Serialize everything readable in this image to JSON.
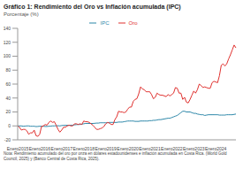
{
  "chart_data": {
    "type": "line",
    "title": "Gráfico 1: Rendimiento del Oro vs Inflación acumulada (IPC)",
    "subtitle": "Porcentaje (%)",
    "note": "Nota: Rendimiento acumulado del oro por onza en dólares estadounidenses e inflación acumulada en Costa Rica. (World Gold Council, 2025) y (Banco Central de Costa Rica, 2025).",
    "categories": [
      "Enero2015",
      null,
      null,
      null,
      null,
      null,
      null,
      null,
      null,
      null,
      null,
      null,
      "Enero2016",
      null,
      null,
      null,
      null,
      null,
      null,
      null,
      null,
      null,
      null,
      null,
      "Enero2017",
      null,
      null,
      null,
      null,
      null,
      null,
      null,
      null,
      null,
      null,
      null,
      "Enero2018",
      null,
      null,
      null,
      null,
      null,
      null,
      null,
      null,
      null,
      null,
      null,
      "Enero2019",
      null,
      null,
      null,
      null,
      null,
      null,
      null,
      null,
      null,
      null,
      null,
      "Enero2020",
      null,
      null,
      null,
      null,
      null,
      null,
      null,
      null,
      null,
      null,
      null,
      "Enero2021",
      null,
      null,
      null,
      null,
      null,
      null,
      null,
      null,
      null,
      null,
      null,
      "Enero2022",
      null,
      null,
      null,
      null,
      null,
      null,
      null,
      null,
      null,
      null,
      null,
      "Enero2023",
      null,
      null,
      null,
      null,
      null,
      null,
      null,
      null,
      null,
      null,
      null,
      "Enero2024",
      null,
      null,
      null,
      null,
      null,
      null,
      null,
      null,
      null,
      null,
      null
    ],
    "series": [
      {
        "name": "IPC",
        "color": "#2b86a8",
        "values": [
          0,
          0,
          0,
          -0.5,
          -0.3,
          0,
          0,
          -0.5,
          -0.5,
          -0.5,
          -1,
          -0.8,
          -0.5,
          -0.6,
          -0.5,
          -0.8,
          -0.8,
          -0.5,
          -0.3,
          0,
          0,
          0.2,
          0.2,
          0,
          0.5,
          0.7,
          0.8,
          0.8,
          0.8,
          1,
          1,
          1.5,
          1.8,
          2,
          2,
          2.5,
          3,
          3.5,
          3.5,
          3.5,
          3.5,
          3.5,
          3.7,
          4,
          4,
          4.5,
          4.5,
          4.5,
          4.5,
          4.5,
          5,
          5,
          5,
          5,
          5,
          5.5,
          5.5,
          5.5,
          6,
          6.5,
          7,
          7,
          7,
          7,
          6.5,
          6.5,
          6.5,
          7,
          7,
          7,
          7,
          7,
          7.5,
          7.5,
          8,
          8,
          8.5,
          9,
          9,
          9.5,
          10,
          10.5,
          11,
          11,
          12,
          13,
          14,
          15,
          17,
          19,
          21,
          21,
          20,
          20,
          20,
          19,
          18,
          18,
          17,
          16.5,
          16,
          16,
          15,
          15.5,
          16,
          16,
          16,
          16,
          16,
          16,
          15.5,
          15.5,
          15.5,
          15.5,
          16,
          16,
          16,
          16,
          16.5,
          17
        ]
      },
      {
        "name": "Oro",
        "color": "#e0302e",
        "values": [
          0,
          -2,
          -6,
          -5,
          -5,
          -7,
          -12,
          -10,
          -10,
          -6,
          -14,
          -15,
          -12,
          -1,
          0,
          2,
          1,
          5,
          7,
          5,
          6,
          1,
          -5,
          -9,
          -6,
          -2,
          -2,
          0,
          1,
          0,
          0,
          3,
          3,
          2,
          3,
          2,
          7,
          6,
          6,
          5,
          3,
          1,
          -2,
          -5,
          -5,
          -4,
          -3,
          -1,
          3,
          5,
          4,
          2,
          2,
          9,
          13,
          21,
          20,
          20,
          19,
          20,
          24,
          27,
          27,
          35,
          38,
          39,
          46,
          56,
          53,
          52,
          49,
          49,
          49,
          45,
          39,
          41,
          47,
          45,
          44,
          44,
          43,
          42,
          45,
          43,
          45,
          47,
          55,
          54,
          47,
          47,
          38,
          41,
          34,
          33,
          38,
          44,
          50,
          47,
          52,
          60,
          58,
          55,
          56,
          55,
          54,
          54,
          62,
          64,
          63,
          62,
          72,
          87,
          89,
          86,
          89,
          96,
          102,
          109,
          116,
          112
        ]
      }
    ],
    "ylim": [
      -20,
      140
    ],
    "yticks": [
      -20,
      0,
      20,
      40,
      60,
      80,
      100,
      120,
      140
    ],
    "grid": false,
    "legend": "top"
  }
}
